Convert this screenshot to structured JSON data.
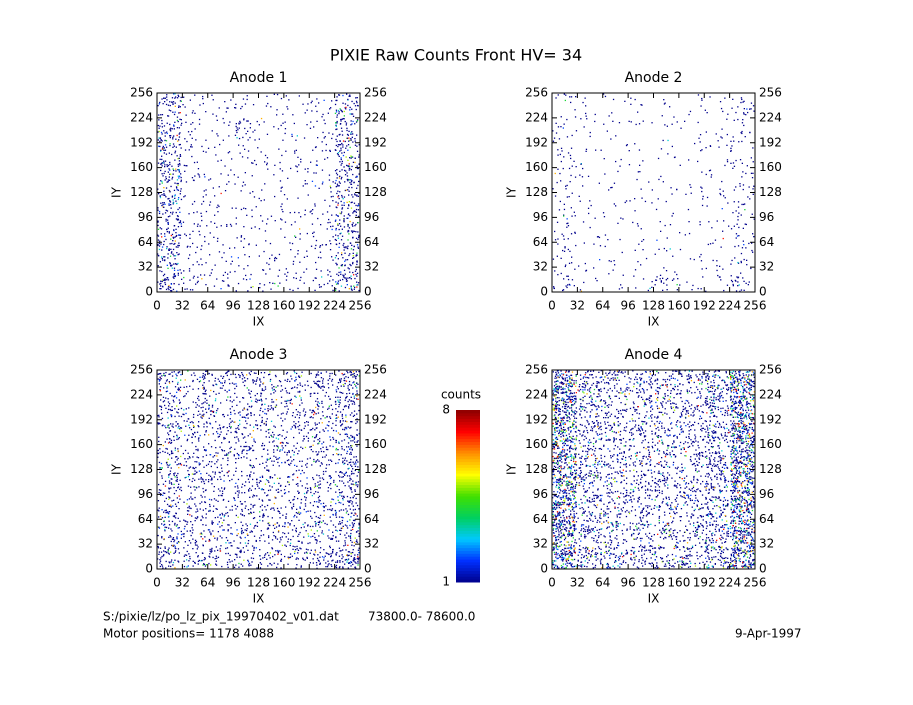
{
  "title": "PIXIE Raw Counts Front HV= 34",
  "colorbar": {
    "label": "counts",
    "ticks": [
      1,
      8
    ],
    "colors": [
      "#00008b",
      "#0030ff",
      "#00c8ff",
      "#00d060",
      "#40e000",
      "#ffff00",
      "#ff9000",
      "#ff0000",
      "#8b0000"
    ]
  },
  "footer": {
    "file": "S:/pixie/lz/po_lz_pix_19970402_v01.dat",
    "range": "73800.0- 78600.0",
    "motor": "Motor positions= 1178 4088",
    "date": "9-Apr-1997"
  },
  "chart_data": [
    {
      "type": "heatmap",
      "title": "Anode 1",
      "xlabel": "IX",
      "ylabel": "IY",
      "xlim": [
        0,
        256
      ],
      "ylim": [
        0,
        256
      ],
      "xticks": [
        0,
        32,
        64,
        96,
        128,
        160,
        192,
        224,
        256
      ],
      "yticks": [
        0,
        32,
        64,
        96,
        128,
        160,
        192,
        224,
        256
      ],
      "z": [
        [
          0.3,
          0.1,
          0.08,
          0.06,
          0.08,
          0.08,
          0.1,
          0.3
        ],
        [
          0.3,
          0.08,
          0.06,
          0.05,
          0.06,
          0.06,
          0.08,
          0.3
        ],
        [
          0.3,
          0.08,
          0.06,
          0.05,
          0.05,
          0.05,
          0.08,
          0.3
        ],
        [
          0.3,
          0.07,
          0.05,
          0.05,
          0.05,
          0.05,
          0.07,
          0.3
        ],
        [
          0.3,
          0.07,
          0.05,
          0.05,
          0.05,
          0.05,
          0.07,
          0.3
        ],
        [
          0.3,
          0.07,
          0.05,
          0.06,
          0.05,
          0.05,
          0.07,
          0.3
        ],
        [
          0.3,
          0.07,
          0.05,
          0.15,
          0.05,
          0.05,
          0.07,
          0.3
        ],
        [
          0.25,
          0.07,
          0.05,
          0.05,
          0.05,
          0.05,
          0.07,
          0.25
        ]
      ]
    },
    {
      "type": "heatmap",
      "title": "Anode 2",
      "xlabel": "IX",
      "ylabel": "IY",
      "xlim": [
        0,
        256
      ],
      "ylim": [
        0,
        256
      ],
      "xticks": [
        0,
        32,
        64,
        96,
        128,
        160,
        192,
        224,
        256
      ],
      "yticks": [
        0,
        32,
        64,
        96,
        128,
        160,
        192,
        224,
        256
      ],
      "z": [
        [
          0.1,
          0.04,
          0.03,
          0.04,
          0.12,
          0.04,
          0.05,
          0.12
        ],
        [
          0.08,
          0.03,
          0.03,
          0.03,
          0.03,
          0.03,
          0.04,
          0.1
        ],
        [
          0.08,
          0.03,
          0.03,
          0.03,
          0.03,
          0.03,
          0.04,
          0.08
        ],
        [
          0.07,
          0.03,
          0.03,
          0.03,
          0.03,
          0.03,
          0.04,
          0.08
        ],
        [
          0.07,
          0.03,
          0.03,
          0.03,
          0.03,
          0.03,
          0.04,
          0.08
        ],
        [
          0.07,
          0.03,
          0.03,
          0.03,
          0.03,
          0.03,
          0.04,
          0.07
        ],
        [
          0.07,
          0.03,
          0.03,
          0.03,
          0.03,
          0.03,
          0.04,
          0.08
        ],
        [
          0.06,
          0.03,
          0.03,
          0.03,
          0.03,
          0.03,
          0.04,
          0.1
        ]
      ]
    },
    {
      "type": "heatmap",
      "title": "Anode 3",
      "xlabel": "IX",
      "ylabel": "IY",
      "xlim": [
        0,
        256
      ],
      "ylim": [
        0,
        256
      ],
      "xticks": [
        0,
        32,
        64,
        96,
        128,
        160,
        192,
        224,
        256
      ],
      "yticks": [
        0,
        32,
        64,
        96,
        128,
        160,
        192,
        224,
        256
      ],
      "z": [
        [
          0.28,
          0.22,
          0.2,
          0.2,
          0.2,
          0.2,
          0.25,
          0.4
        ],
        [
          0.25,
          0.2,
          0.2,
          0.2,
          0.2,
          0.2,
          0.22,
          0.3
        ],
        [
          0.25,
          0.2,
          0.18,
          0.2,
          0.2,
          0.18,
          0.2,
          0.28
        ],
        [
          0.25,
          0.2,
          0.18,
          0.2,
          0.2,
          0.18,
          0.2,
          0.28
        ],
        [
          0.25,
          0.2,
          0.18,
          0.2,
          0.2,
          0.18,
          0.2,
          0.28
        ],
        [
          0.25,
          0.2,
          0.18,
          0.2,
          0.2,
          0.18,
          0.2,
          0.28
        ],
        [
          0.25,
          0.2,
          0.18,
          0.2,
          0.2,
          0.18,
          0.22,
          0.3
        ],
        [
          0.28,
          0.2,
          0.2,
          0.2,
          0.2,
          0.2,
          0.25,
          0.35
        ]
      ]
    },
    {
      "type": "heatmap",
      "title": "Anode 4",
      "xlabel": "IX",
      "ylabel": "IY",
      "xlim": [
        0,
        256
      ],
      "ylim": [
        0,
        256
      ],
      "xticks": [
        0,
        32,
        64,
        96,
        128,
        160,
        192,
        224,
        256
      ],
      "yticks": [
        0,
        32,
        64,
        96,
        128,
        160,
        192,
        224,
        256
      ],
      "z": [
        [
          0.7,
          0.35,
          0.3,
          0.28,
          0.28,
          0.28,
          0.4,
          0.75
        ],
        [
          0.7,
          0.3,
          0.25,
          0.25,
          0.25,
          0.25,
          0.35,
          0.75
        ],
        [
          0.7,
          0.3,
          0.25,
          0.25,
          0.25,
          0.25,
          0.35,
          0.75
        ],
        [
          0.7,
          0.3,
          0.25,
          0.25,
          0.25,
          0.25,
          0.35,
          0.75
        ],
        [
          0.7,
          0.3,
          0.25,
          0.25,
          0.25,
          0.25,
          0.35,
          0.75
        ],
        [
          0.7,
          0.3,
          0.25,
          0.25,
          0.25,
          0.25,
          0.35,
          0.75
        ],
        [
          0.7,
          0.3,
          0.25,
          0.25,
          0.25,
          0.25,
          0.35,
          0.75
        ],
        [
          0.7,
          0.35,
          0.3,
          0.28,
          0.28,
          0.28,
          0.4,
          0.75
        ]
      ]
    }
  ]
}
